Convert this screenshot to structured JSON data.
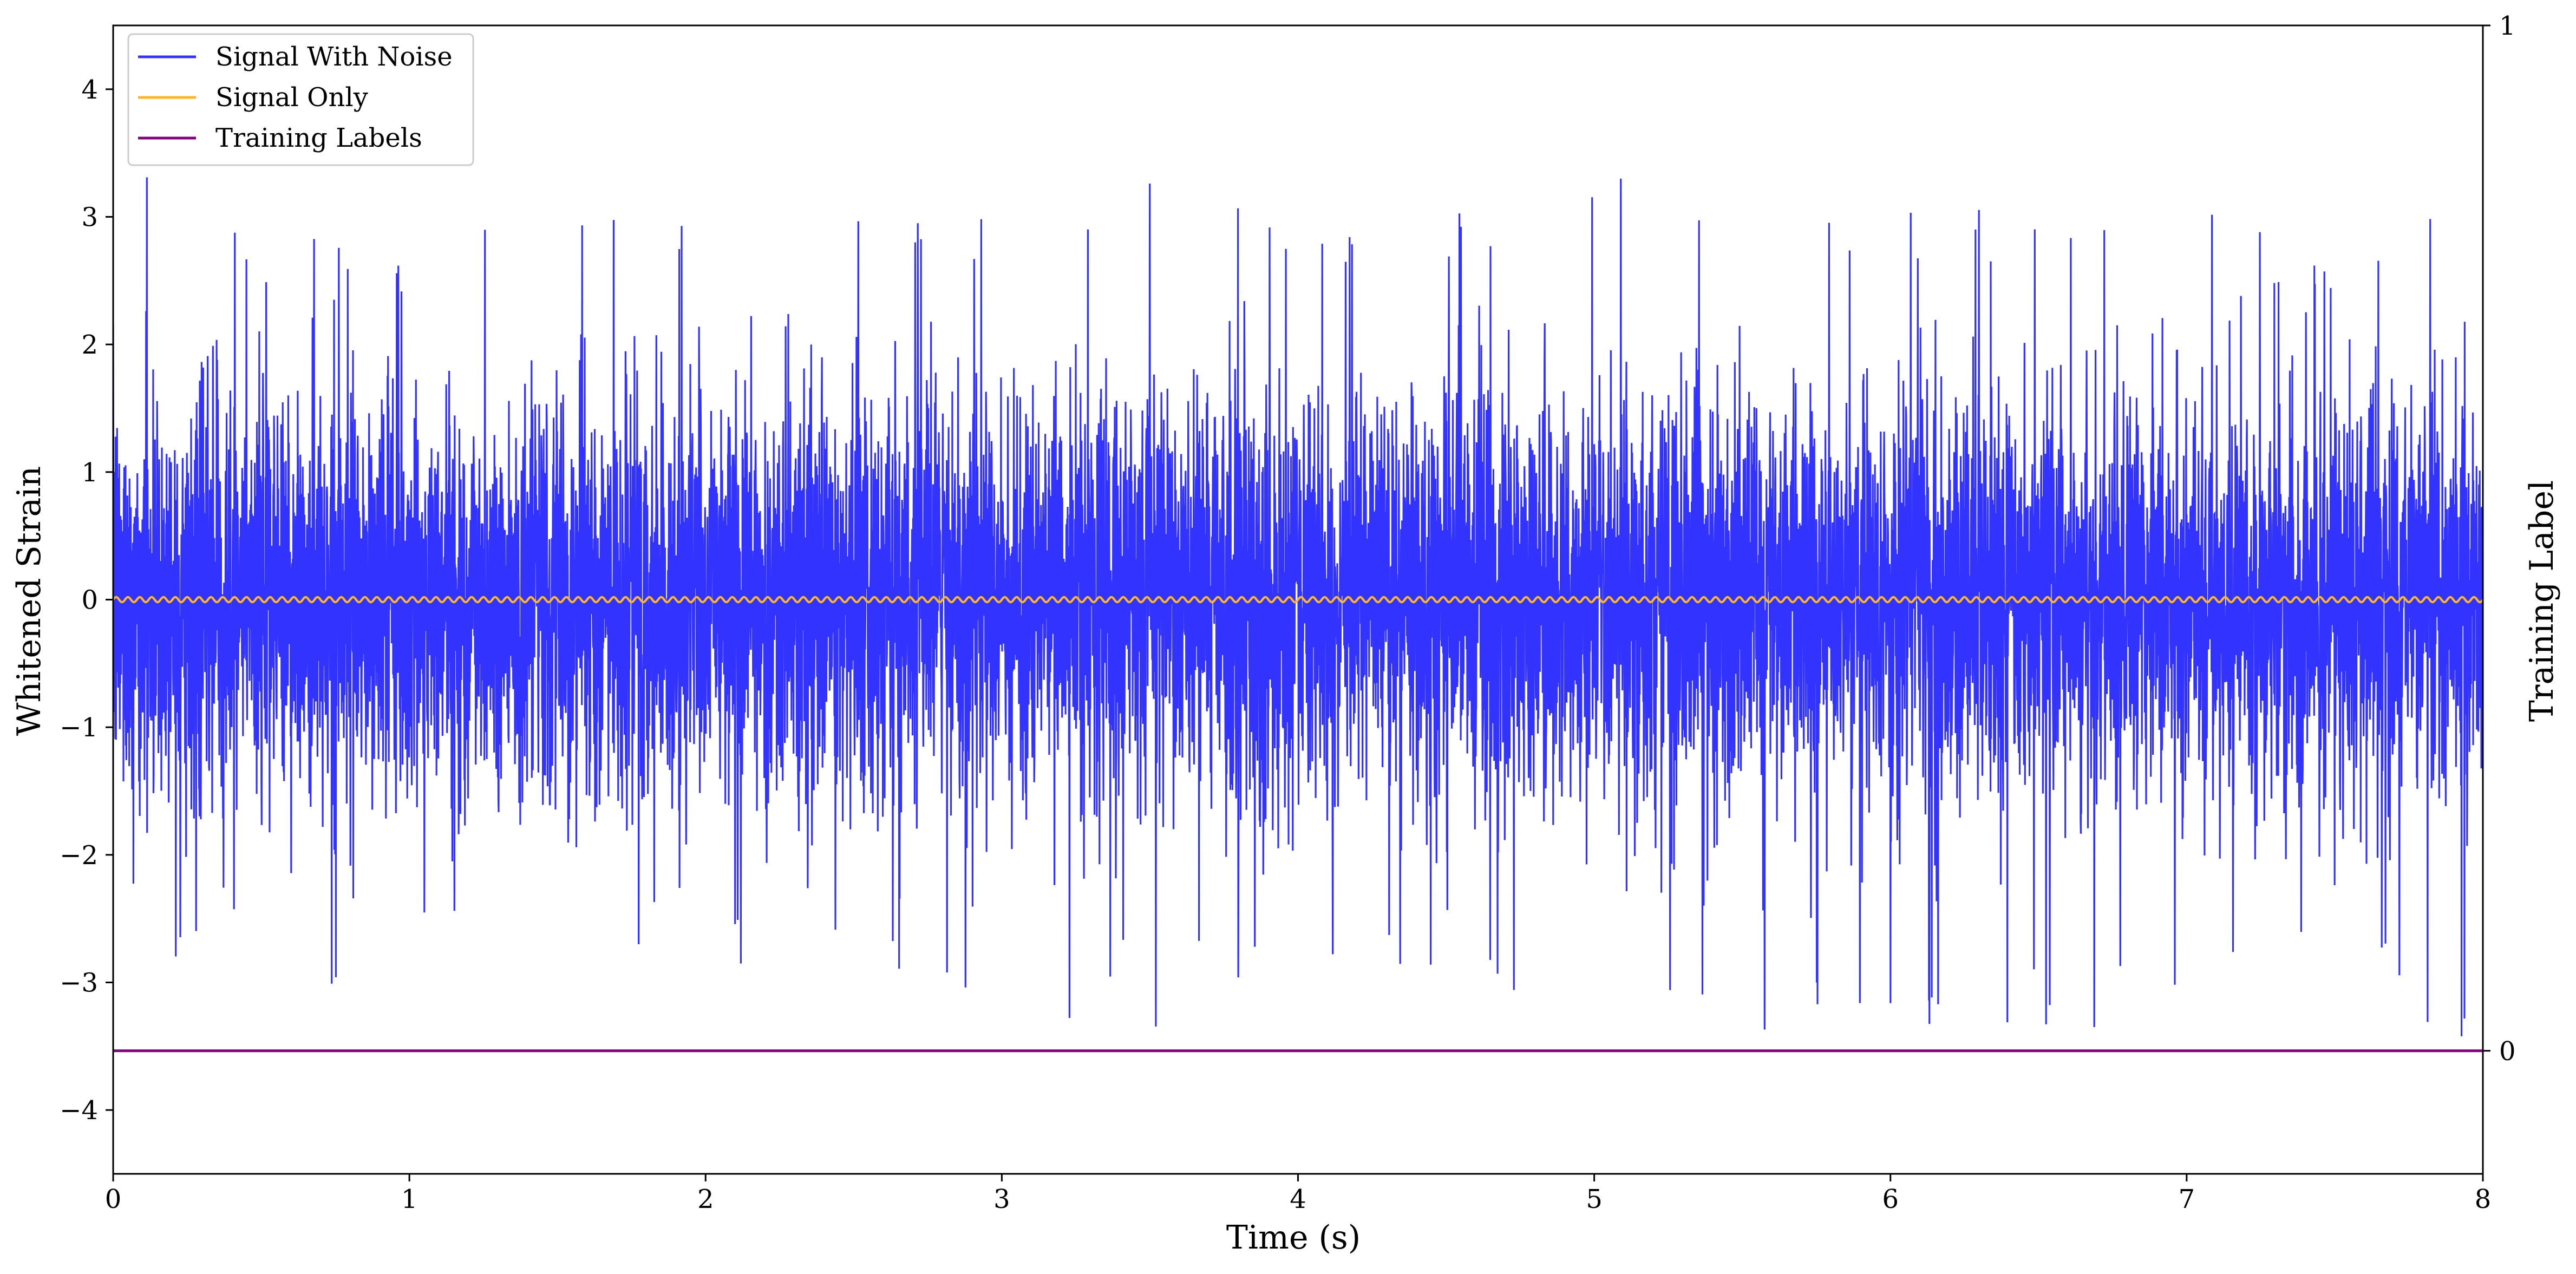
{
  "chart_data": {
    "type": "line",
    "xlabel": "Time (s)",
    "ylabel": "Whitened Strain",
    "y2label": "Training Label",
    "xlim": [
      0,
      8
    ],
    "ylim": [
      -4.5,
      4.5
    ],
    "y2lim": [
      -0.12,
      1
    ],
    "xticks": [
      "0",
      "1",
      "2",
      "3",
      "4",
      "5",
      "6",
      "7",
      "8"
    ],
    "yticks": [
      "−4",
      "−3",
      "−2",
      "−1",
      "0",
      "1",
      "2",
      "3",
      "4"
    ],
    "y2ticks": [
      "0",
      "1"
    ],
    "legend_position": "top-left",
    "grid": false,
    "series": [
      {
        "name": "Signal With Noise",
        "color": "#3333ff",
        "axis": "left",
        "envelope": {
          "x": [
            0,
            0.5,
            1,
            1.5,
            2,
            2.5,
            3,
            3.5,
            4,
            4.5,
            5,
            5.5,
            6,
            6.5,
            7,
            7.5,
            8
          ],
          "max": [
            3.5,
            2.9,
            3.0,
            2.9,
            3.1,
            3.1,
            3.0,
            3.3,
            3.2,
            3.0,
            3.5,
            3.0,
            3.1,
            3.1,
            3.2,
            3.0,
            3.3
          ],
          "min": [
            -2.5,
            -3.2,
            -2.8,
            -3.4,
            -2.9,
            -2.7,
            -3.5,
            -3.4,
            -2.8,
            -3.0,
            -3.5,
            -3.6,
            -3.4,
            -3.4,
            -3.3,
            -2.8,
            -3.7
          ]
        },
        "annotation": "dense noise, approximately -3.6 to 3.5"
      },
      {
        "name": "Signal Only",
        "color": "#ffb62e",
        "axis": "left",
        "amplitude": 0.02,
        "cycles": 200,
        "x": [
          0,
          8
        ],
        "y": [
          0,
          0
        ]
      },
      {
        "name": "Training Labels",
        "color": "#800080",
        "axis": "right",
        "x": [
          0,
          8
        ],
        "y": [
          0,
          0
        ]
      }
    ]
  }
}
